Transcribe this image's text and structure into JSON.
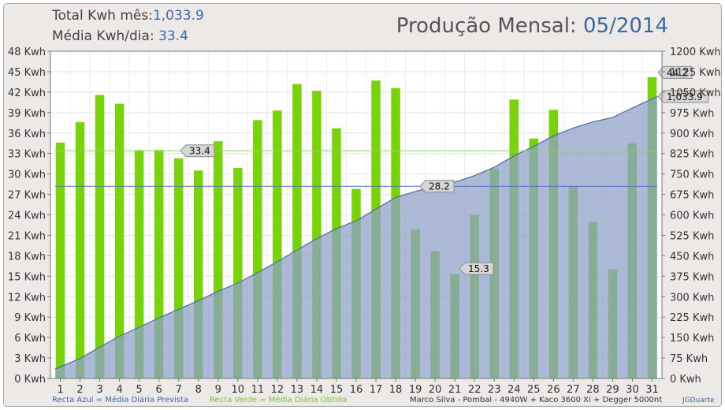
{
  "header": {
    "total_label": "Total Kwh mês:",
    "total_value": "1,033.9",
    "avg_label": "Média Kwh/dia:",
    "avg_value": "33.4",
    "title_label": "Produção Mensal:",
    "title_value": "05/2014"
  },
  "footer": {
    "blue_note": "Recta Azul = Média Diária Prevista",
    "green_note": "Recta Verde = Média Diária Obtida",
    "system_note": "Marco Silva - Pombal - 4940W + Kaco 3600 Xi + Degger 5000nt",
    "credit": "JGDuarte"
  },
  "colors": {
    "bar_light": "#79d30b",
    "bar_dark": "#5ea523",
    "area_fill": "#8c9fc9",
    "area_line": "#4e6aa2",
    "avg_obtained_line": "#8fd160",
    "avg_forecast_line": "#4a74c1",
    "label_value_blue": "#3d68a8"
  },
  "chart_data": {
    "type": "bar",
    "title": "Produção Mensal: 05/2014",
    "categories": [
      "1",
      "2",
      "3",
      "4",
      "5",
      "6",
      "7",
      "8",
      "9",
      "10",
      "11",
      "12",
      "13",
      "14",
      "15",
      "16",
      "17",
      "18",
      "19",
      "20",
      "21",
      "22",
      "23",
      "24",
      "25",
      "26",
      "27",
      "28",
      "29",
      "30",
      "31"
    ],
    "y_left": {
      "ticks": [
        "0 Kwh",
        "3 Kwh",
        "6 Kwh",
        "9 Kwh",
        "12 Kwh",
        "15 Kwh",
        "18 Kwh",
        "21 Kwh",
        "24 Kwh",
        "27 Kwh",
        "30 Kwh",
        "33 Kwh",
        "36 Kwh",
        "39 Kwh",
        "42 Kwh",
        "45 Kwh",
        "48 Kwh"
      ],
      "range": [
        0,
        48
      ]
    },
    "y_right": {
      "ticks": [
        "0 Kwh",
        "75 Kwh",
        "150 Kwh",
        "225 Kwh",
        "300 Kwh",
        "375 Kwh",
        "450 Kwh",
        "525 Kwh",
        "600 Kwh",
        "675 Kwh",
        "750 Kwh",
        "825 Kwh",
        "900 Kwh",
        "975 Kwh",
        "1050 Kwh",
        "1125 Kwh",
        "1200 Kwh"
      ],
      "range": [
        0,
        1200
      ]
    },
    "series": [
      {
        "type": "bar",
        "axis": "left",
        "values": [
          34.6,
          37.6,
          41.6,
          40.3,
          33.5,
          33.5,
          32.3,
          30.5,
          34.8,
          30.9,
          37.9,
          39.3,
          43.2,
          42.2,
          36.7,
          27.8,
          43.7,
          42.6,
          21.9,
          18.7,
          15.3,
          24.0,
          30.8,
          40.9,
          35.2,
          39.4,
          28.2,
          23.0,
          16.0,
          34.5,
          44.2
        ]
      },
      {
        "type": "area",
        "axis": "right",
        "values": [
          35,
          73,
          115,
          155,
          188,
          222,
          254,
          285,
          320,
          350,
          388,
          428,
          471,
          513,
          550,
          578,
          621,
          664,
          686,
          705,
          720,
          744,
          775,
          816,
          851,
          890,
          918,
          941,
          957,
          992,
          1033.9
        ]
      },
      {
        "type": "hline",
        "axis": "left",
        "value": 33.4,
        "label": "33.4"
      },
      {
        "type": "hline",
        "axis": "left",
        "value": 28.2,
        "label": "28.2"
      }
    ],
    "data_labels": [
      {
        "text": "33.4"
      },
      {
        "text": "28.2"
      },
      {
        "text": "15.3"
      },
      {
        "text": "44.2"
      },
      {
        "text": "1,033.9"
      }
    ]
  }
}
